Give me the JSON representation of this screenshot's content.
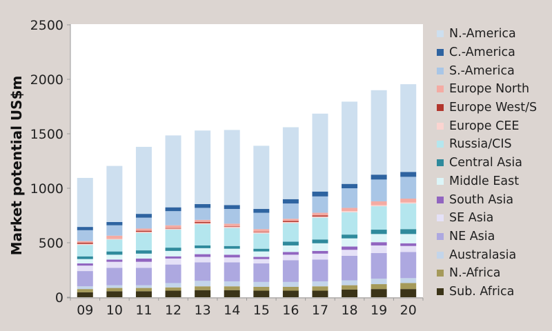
{
  "chart_data": {
    "type": "bar",
    "stacked": true,
    "title": "",
    "xlabel": "",
    "ylabel": "Market potential US$m",
    "ylim": [
      0,
      2500
    ],
    "yticks": [
      0,
      500,
      1000,
      1500,
      2000,
      2500
    ],
    "categories": [
      "09",
      "10",
      "11",
      "12",
      "13",
      "14",
      "15",
      "16",
      "17",
      "18",
      "19",
      "20"
    ],
    "legend_position": "right",
    "series": [
      {
        "name": "Sub. Africa",
        "color": "#3b3418",
        "values": [
          45,
          55,
          55,
          60,
          65,
          65,
          60,
          60,
          60,
          70,
          75,
          75
        ]
      },
      {
        "name": "N.-Africa",
        "color": "#a59a5a",
        "values": [
          30,
          30,
          30,
          30,
          35,
          35,
          35,
          35,
          40,
          40,
          45,
          55
        ]
      },
      {
        "name": "Australasia",
        "color": "#c3d5ea",
        "values": [
          25,
          25,
          25,
          40,
          50,
          45,
          45,
          45,
          45,
          45,
          50,
          45
        ]
      },
      {
        "name": "NE Asia",
        "color": "#ada8e0",
        "values": [
          140,
          160,
          160,
          170,
          170,
          175,
          170,
          200,
          200,
          225,
          235,
          240
        ]
      },
      {
        "name": "SE Asia",
        "color": "#e5e1f7",
        "values": [
          50,
          55,
          55,
          55,
          50,
          45,
          40,
          50,
          55,
          55,
          70,
          55
        ]
      },
      {
        "name": "South Asia",
        "color": "#9165c0",
        "values": [
          20,
          20,
          30,
          20,
          25,
          25,
          20,
          25,
          25,
          30,
          30,
          25
        ]
      },
      {
        "name": "Middle East",
        "color": "#dcf5f8",
        "values": [
          40,
          45,
          45,
          50,
          55,
          55,
          50,
          60,
          70,
          75,
          75,
          85
        ]
      },
      {
        "name": "Central Asia",
        "color": "#2f8a9c",
        "values": [
          25,
          30,
          30,
          30,
          25,
          25,
          25,
          35,
          35,
          35,
          40,
          45
        ]
      },
      {
        "name": "Russia/CIS",
        "color": "#b4e6ee",
        "values": [
          105,
          110,
          160,
          165,
          195,
          165,
          140,
          170,
          200,
          205,
          215,
          235
        ]
      },
      {
        "name": "Europe CEE",
        "color": "#fbd4d0",
        "values": [
          10,
          5,
          10,
          10,
          10,
          10,
          10,
          10,
          10,
          10,
          10,
          10
        ]
      },
      {
        "name": "Europe West/S",
        "color": "#b2362d",
        "values": [
          10,
          0,
          10,
          5,
          10,
          5,
          5,
          10,
          10,
          0,
          0,
          0
        ]
      },
      {
        "name": "Europe North",
        "color": "#f4aba3",
        "values": [
          15,
          30,
          20,
          25,
          20,
          25,
          25,
          20,
          25,
          30,
          35,
          35
        ]
      },
      {
        "name": "S.-America",
        "color": "#a9c6e6",
        "values": [
          100,
          95,
          100,
          130,
          110,
          135,
          150,
          140,
          150,
          180,
          200,
          200
        ]
      },
      {
        "name": "C.-America",
        "color": "#2e63a0",
        "values": [
          30,
          30,
          35,
          35,
          35,
          35,
          35,
          40,
          45,
          40,
          45,
          45
        ]
      },
      {
        "name": "N.-America",
        "color": "#cddfef",
        "values": [
          450,
          515,
          615,
          660,
          675,
          690,
          580,
          660,
          715,
          755,
          775,
          805
        ]
      }
    ]
  },
  "legend": [
    {
      "label": "N.-America",
      "color": "#cddfef"
    },
    {
      "label": "C.-America",
      "color": "#2e63a0"
    },
    {
      "label": "S.-America",
      "color": "#a9c6e6"
    },
    {
      "label": "Europe North",
      "color": "#f4aba3"
    },
    {
      "label": "Europe West/S",
      "color": "#b2362d"
    },
    {
      "label": "Europe CEE",
      "color": "#fbd4d0"
    },
    {
      "label": "Russia/CIS",
      "color": "#b4e6ee"
    },
    {
      "label": "Central Asia",
      "color": "#2f8a9c"
    },
    {
      "label": "Middle East",
      "color": "#dcf5f8"
    },
    {
      "label": "South Asia",
      "color": "#9165c0"
    },
    {
      "label": "SE Asia",
      "color": "#e5e1f7"
    },
    {
      "label": "NE Asia",
      "color": "#ada8e0"
    },
    {
      "label": "Australasia",
      "color": "#c3d5ea"
    },
    {
      "label": "N.-Africa",
      "color": "#a59a5a"
    },
    {
      "label": "Sub. Africa",
      "color": "#3b3418"
    }
  ]
}
